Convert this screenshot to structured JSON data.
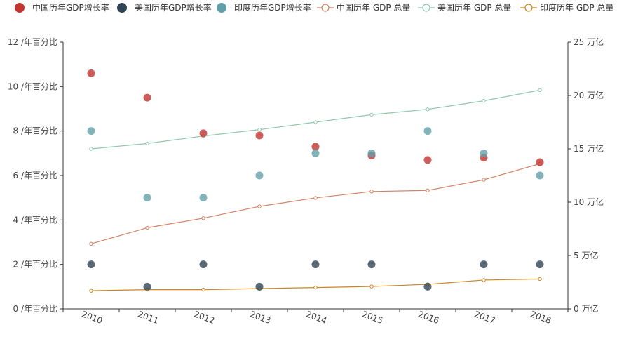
{
  "chart_data": {
    "type": "scatter+line",
    "categories": [
      "2010",
      "2011",
      "2012",
      "2013",
      "2014",
      "2015",
      "2016",
      "2017",
      "2018"
    ],
    "y_left": {
      "unit_suffix": " /年百分比",
      "ticks": [
        0,
        2,
        4,
        6,
        8,
        10,
        12
      ],
      "ylim": [
        0,
        12
      ]
    },
    "y_right": {
      "unit_suffix": " 万亿",
      "ticks": [
        0,
        5,
        10,
        15,
        20,
        25
      ],
      "ylim": [
        0,
        25
      ]
    },
    "legend": {
      "placement": "top",
      "items": [
        {
          "label": "中国历年GDP增长率",
          "kind": "dot",
          "color": "#c23531"
        },
        {
          "label": "美国历年GDP增长率",
          "kind": "dot",
          "color": "#2f4554"
        },
        {
          "label": "印度历年GDP增长率",
          "kind": "dot",
          "color": "#61a0a8"
        },
        {
          "label": "中国历年 GDP 总量",
          "kind": "line",
          "color": "#d48265"
        },
        {
          "label": "美国历年 GDP 总量",
          "kind": "line",
          "color": "#91c7ae"
        },
        {
          "label": "印度历年 GDP 总量",
          "kind": "line",
          "color": "#ca8622"
        }
      ]
    },
    "scatter_series": [
      {
        "name": "中国历年GDP增长率",
        "axis": "left",
        "color": "#c23531",
        "values": [
          10.6,
          9.5,
          7.9,
          7.8,
          7.3,
          6.9,
          6.7,
          6.8,
          6.6
        ]
      },
      {
        "name": "美国历年GDP增长率",
        "axis": "left",
        "color": "#2f4554",
        "values": [
          2,
          1,
          2,
          1,
          2,
          2,
          1,
          2,
          2
        ]
      },
      {
        "name": "印度历年GDP增长率",
        "axis": "left",
        "color": "#61a0a8",
        "values": [
          8,
          5,
          5,
          6,
          7,
          7,
          8,
          7,
          6
        ]
      }
    ],
    "line_series": [
      {
        "name": "中国历年 GDP 总量",
        "axis": "right",
        "color": "#d48265",
        "values": [
          6.1,
          7.6,
          8.5,
          9.6,
          10.4,
          11.0,
          11.1,
          12.1,
          13.6
        ]
      },
      {
        "name": "美国历年 GDP 总量",
        "axis": "right",
        "color": "#91c7ae",
        "values": [
          15.0,
          15.5,
          16.2,
          16.8,
          17.5,
          18.2,
          18.7,
          19.5,
          20.5
        ]
      },
      {
        "name": "印度历年 GDP 总量",
        "axis": "right",
        "color": "#ca8622",
        "values": [
          1.7,
          1.8,
          1.8,
          1.9,
          2.0,
          2.1,
          2.3,
          2.7,
          2.8
        ]
      }
    ]
  }
}
